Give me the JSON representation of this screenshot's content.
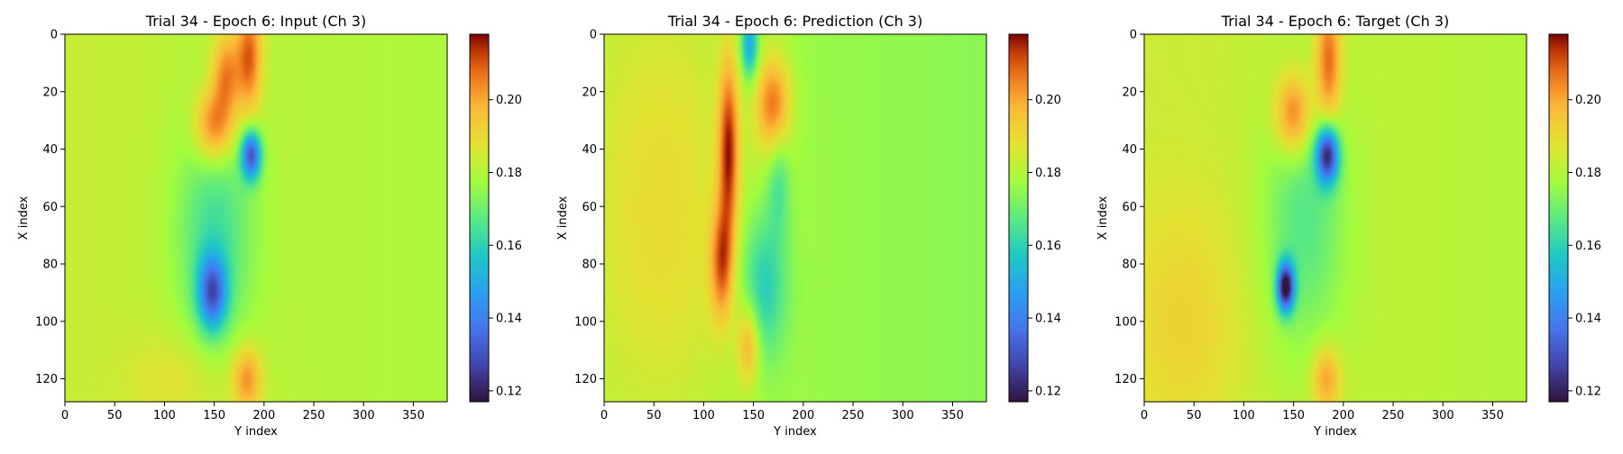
{
  "chart_data": [
    {
      "type": "heatmap",
      "title": "Trial 34 - Epoch 6: Input (Ch 3)",
      "xlabel": "Y index",
      "ylabel": "X index",
      "x_ticks": [
        "0",
        "50",
        "100",
        "150",
        "200",
        "250",
        "300",
        "350"
      ],
      "y_ticks": [
        "0",
        "20",
        "40",
        "60",
        "80",
        "100",
        "120"
      ],
      "colorbar_ticks": [
        "0.20",
        "0.18",
        "0.16",
        "0.14",
        "0.12"
      ],
      "colormap": "turbo",
      "value_range": [
        0.117,
        0.218
      ],
      "xlim": [
        0,
        384
      ],
      "ylim": [
        128,
        0
      ],
      "background_value": 0.183,
      "features": [
        {
          "x": 150,
          "y": 32,
          "sx": 14,
          "sy": 9,
          "v": 0.212
        },
        {
          "x": 162,
          "y": 14,
          "sx": 10,
          "sy": 10,
          "v": 0.208
        },
        {
          "x": 185,
          "y": 8,
          "sx": 9,
          "sy": 14,
          "v": 0.212
        },
        {
          "x": 187,
          "y": 42,
          "sx": 7,
          "sy": 6,
          "v": 0.135
        },
        {
          "x": 148,
          "y": 90,
          "sx": 10,
          "sy": 9,
          "v": 0.142
        },
        {
          "x": 150,
          "y": 70,
          "sx": 28,
          "sy": 30,
          "v": 0.165
        },
        {
          "x": 183,
          "y": 120,
          "sx": 10,
          "sy": 8,
          "v": 0.205
        },
        {
          "x": 120,
          "y": 120,
          "sx": 40,
          "sy": 12,
          "v": 0.19
        }
      ]
    },
    {
      "type": "heatmap",
      "title": "Trial 34 - Epoch 6: Prediction (Ch 3)",
      "xlabel": "Y index",
      "ylabel": "X index",
      "x_ticks": [
        "0",
        "50",
        "100",
        "150",
        "200",
        "250",
        "300",
        "350"
      ],
      "y_ticks": [
        "0",
        "20",
        "40",
        "60",
        "80",
        "100",
        "120"
      ],
      "colorbar_ticks": [
        "0.20",
        "0.18",
        "0.16",
        "0.14",
        "0.12"
      ],
      "colormap": "turbo",
      "value_range": [
        0.117,
        0.218
      ],
      "xlim": [
        0,
        384
      ],
      "ylim": [
        128,
        0
      ],
      "background_value": 0.178,
      "features": [
        {
          "x": 125,
          "y": 40,
          "sx": 7,
          "sy": 22,
          "v": 0.212
        },
        {
          "x": 118,
          "y": 80,
          "sx": 8,
          "sy": 14,
          "v": 0.205
        },
        {
          "x": 145,
          "y": 108,
          "sx": 8,
          "sy": 10,
          "v": 0.2
        },
        {
          "x": 170,
          "y": 25,
          "sx": 12,
          "sy": 12,
          "v": 0.208
        },
        {
          "x": 146,
          "y": 4,
          "sx": 6,
          "sy": 8,
          "v": 0.148
        },
        {
          "x": 160,
          "y": 88,
          "sx": 16,
          "sy": 18,
          "v": 0.158
        },
        {
          "x": 175,
          "y": 50,
          "sx": 8,
          "sy": 14,
          "v": 0.165
        },
        {
          "x": 60,
          "y": 60,
          "sx": 60,
          "sy": 60,
          "v": 0.19
        }
      ]
    },
    {
      "type": "heatmap",
      "title": "Trial 34 - Epoch 6: Target (Ch 3)",
      "xlabel": "Y index",
      "ylabel": "X index",
      "x_ticks": [
        "0",
        "50",
        "100",
        "150",
        "200",
        "250",
        "300",
        "350"
      ],
      "y_ticks": [
        "0",
        "20",
        "40",
        "60",
        "80",
        "100",
        "120"
      ],
      "colorbar_ticks": [
        "0.20",
        "0.18",
        "0.16",
        "0.14",
        "0.12"
      ],
      "colormap": "turbo",
      "value_range": [
        0.117,
        0.218
      ],
      "xlim": [
        0,
        384
      ],
      "ylim": [
        128,
        0
      ],
      "background_value": 0.184,
      "features": [
        {
          "x": 150,
          "y": 28,
          "sx": 13,
          "sy": 10,
          "v": 0.212
        },
        {
          "x": 185,
          "y": 10,
          "sx": 9,
          "sy": 16,
          "v": 0.212
        },
        {
          "x": 184,
          "y": 42,
          "sx": 8,
          "sy": 7,
          "v": 0.128
        },
        {
          "x": 142,
          "y": 88,
          "sx": 6,
          "sy": 6,
          "v": 0.122
        },
        {
          "x": 160,
          "y": 65,
          "sx": 30,
          "sy": 32,
          "v": 0.168
        },
        {
          "x": 183,
          "y": 120,
          "sx": 10,
          "sy": 8,
          "v": 0.205
        },
        {
          "x": 40,
          "y": 100,
          "sx": 40,
          "sy": 30,
          "v": 0.192
        }
      ]
    }
  ]
}
